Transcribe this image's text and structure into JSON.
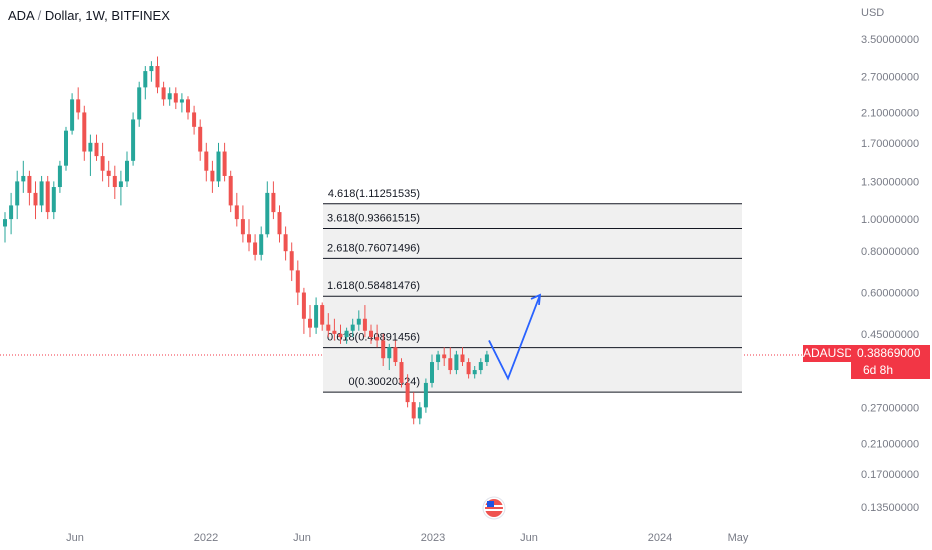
{
  "header": {
    "symbol": "ADA",
    "sep": "/",
    "quote": "Dollar, 1W, BITFINEX"
  },
  "axis": {
    "unit": "USD",
    "price_ticks": [
      "3.50000000",
      "2.70000000",
      "2.10000000",
      "1.70000000",
      "1.30000000",
      "1.00000000",
      "0.80000000",
      "0.60000000",
      "0.45000000",
      "0.27000000",
      "0.21000000",
      "0.17000000",
      "0.13500000"
    ],
    "time_ticks": [
      "Jun",
      "2022",
      "Jun",
      "2023",
      "Jun",
      "2024",
      "May"
    ]
  },
  "badge": {
    "symbol": "ADAUSD",
    "price": "0.38869000",
    "countdown": "6d 8h"
  },
  "colors": {
    "up": "#26a69a",
    "down": "#ef5350",
    "fib_line": "#131722",
    "fib_fill": "#f0f0f0",
    "projection": "#2962ff",
    "price_line": "#f23645"
  },
  "chart_data": {
    "type": "candlestick",
    "scale": "log",
    "ylim": [
      0.12,
      4.5
    ],
    "x_ticks": [
      "Jun",
      "2022",
      "Jun",
      "2023",
      "Jun",
      "2024",
      "May"
    ],
    "current_price": 0.38869,
    "fib_levels": [
      {
        "label": "4.618(1.11251535)",
        "value": 1.11251535
      },
      {
        "label": "3.618(0.93661515)",
        "value": 0.93661515
      },
      {
        "label": "2.618(0.76071496)",
        "value": 0.76071496
      },
      {
        "label": "1.618(0.58481476)",
        "value": 0.58481476
      },
      {
        "label": "0.618(0.40891456)",
        "value": 0.40891456
      },
      {
        "label": "0(0.30020324)",
        "value": 0.30020324
      }
    ],
    "projection_path": [
      0.43,
      0.33,
      0.59
    ],
    "candles": [
      [
        0.95,
        1.05,
        0.85,
        1.0
      ],
      [
        1.0,
        1.2,
        0.9,
        1.1
      ],
      [
        1.1,
        1.4,
        1.0,
        1.3
      ],
      [
        1.3,
        1.5,
        1.2,
        1.35
      ],
      [
        1.35,
        1.4,
        1.1,
        1.2
      ],
      [
        1.2,
        1.3,
        1.0,
        1.1
      ],
      [
        1.1,
        1.35,
        1.05,
        1.3
      ],
      [
        1.3,
        1.35,
        1.0,
        1.05
      ],
      [
        1.05,
        1.3,
        1.0,
        1.25
      ],
      [
        1.25,
        1.5,
        1.2,
        1.45
      ],
      [
        1.45,
        1.9,
        1.4,
        1.85
      ],
      [
        1.85,
        2.4,
        1.8,
        2.3
      ],
      [
        2.3,
        2.5,
        2.0,
        2.1
      ],
      [
        2.1,
        2.2,
        1.5,
        1.6
      ],
      [
        1.6,
        1.8,
        1.35,
        1.7
      ],
      [
        1.7,
        1.8,
        1.5,
        1.55
      ],
      [
        1.55,
        1.7,
        1.3,
        1.4
      ],
      [
        1.4,
        1.5,
        1.25,
        1.35
      ],
      [
        1.35,
        1.45,
        1.15,
        1.25
      ],
      [
        1.25,
        1.4,
        1.1,
        1.3
      ],
      [
        1.3,
        1.6,
        1.25,
        1.5
      ],
      [
        1.5,
        2.1,
        1.45,
        2.0
      ],
      [
        2.0,
        2.6,
        1.9,
        2.5
      ],
      [
        2.5,
        2.9,
        2.3,
        2.8
      ],
      [
        2.8,
        3.0,
        2.6,
        2.9
      ],
      [
        2.9,
        3.1,
        2.4,
        2.5
      ],
      [
        2.5,
        2.6,
        2.2,
        2.3
      ],
      [
        2.3,
        2.5,
        2.2,
        2.4
      ],
      [
        2.4,
        2.5,
        2.15,
        2.25
      ],
      [
        2.25,
        2.4,
        2.1,
        2.3
      ],
      [
        2.3,
        2.35,
        2.0,
        2.1
      ],
      [
        2.1,
        2.2,
        1.8,
        1.9
      ],
      [
        1.9,
        2.0,
        1.5,
        1.6
      ],
      [
        1.6,
        1.7,
        1.3,
        1.4
      ],
      [
        1.4,
        1.5,
        1.2,
        1.3
      ],
      [
        1.3,
        1.7,
        1.25,
        1.6
      ],
      [
        1.6,
        1.7,
        1.3,
        1.35
      ],
      [
        1.35,
        1.4,
        1.05,
        1.1
      ],
      [
        1.1,
        1.2,
        0.95,
        1.0
      ],
      [
        1.0,
        1.1,
        0.85,
        0.9
      ],
      [
        0.9,
        1.0,
        0.8,
        0.85
      ],
      [
        0.85,
        0.9,
        0.75,
        0.78
      ],
      [
        0.78,
        0.95,
        0.75,
        0.9
      ],
      [
        0.9,
        1.3,
        0.88,
        1.2
      ],
      [
        1.2,
        1.3,
        1.0,
        1.05
      ],
      [
        1.05,
        1.1,
        0.85,
        0.9
      ],
      [
        0.9,
        0.95,
        0.75,
        0.8
      ],
      [
        0.8,
        0.85,
        0.65,
        0.7
      ],
      [
        0.7,
        0.75,
        0.55,
        0.6
      ],
      [
        0.6,
        0.62,
        0.45,
        0.5
      ],
      [
        0.5,
        0.55,
        0.44,
        0.47
      ],
      [
        0.47,
        0.58,
        0.45,
        0.55
      ],
      [
        0.55,
        0.56,
        0.46,
        0.48
      ],
      [
        0.48,
        0.52,
        0.44,
        0.46
      ],
      [
        0.46,
        0.5,
        0.43,
        0.45
      ],
      [
        0.45,
        0.48,
        0.42,
        0.44
      ],
      [
        0.44,
        0.47,
        0.42,
        0.46
      ],
      [
        0.46,
        0.5,
        0.44,
        0.48
      ],
      [
        0.48,
        0.53,
        0.46,
        0.5
      ],
      [
        0.5,
        0.55,
        0.44,
        0.46
      ],
      [
        0.46,
        0.48,
        0.42,
        0.44
      ],
      [
        0.44,
        0.48,
        0.41,
        0.43
      ],
      [
        0.43,
        0.45,
        0.36,
        0.38
      ],
      [
        0.38,
        0.42,
        0.35,
        0.41
      ],
      [
        0.41,
        0.43,
        0.36,
        0.37
      ],
      [
        0.37,
        0.38,
        0.31,
        0.32
      ],
      [
        0.32,
        0.34,
        0.27,
        0.28
      ],
      [
        0.28,
        0.3,
        0.24,
        0.25
      ],
      [
        0.25,
        0.28,
        0.24,
        0.27
      ],
      [
        0.27,
        0.33,
        0.26,
        0.32
      ],
      [
        0.32,
        0.39,
        0.31,
        0.37
      ],
      [
        0.37,
        0.4,
        0.35,
        0.39
      ],
      [
        0.39,
        0.41,
        0.36,
        0.38
      ],
      [
        0.38,
        0.41,
        0.34,
        0.35
      ],
      [
        0.35,
        0.4,
        0.34,
        0.39
      ],
      [
        0.39,
        0.41,
        0.36,
        0.37
      ],
      [
        0.37,
        0.38,
        0.33,
        0.34
      ],
      [
        0.34,
        0.36,
        0.33,
        0.35
      ],
      [
        0.35,
        0.38,
        0.34,
        0.37
      ],
      [
        0.37,
        0.4,
        0.36,
        0.39
      ]
    ]
  }
}
